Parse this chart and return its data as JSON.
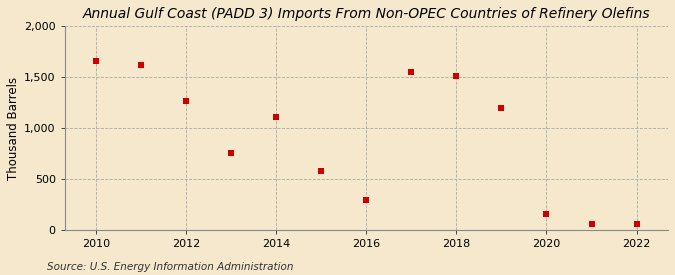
{
  "title": "Annual Gulf Coast (PADD 3) Imports From Non-OPEC Countries of Refinery Olefins",
  "ylabel": "Thousand Barrels",
  "source": "Source: U.S. Energy Information Administration",
  "background_color": "#f5e8cc",
  "plot_bg_color": "#f5e8cc",
  "years": [
    2010,
    2011,
    2012,
    2013,
    2014,
    2015,
    2016,
    2017,
    2018,
    2019,
    2020,
    2021,
    2022
  ],
  "values": [
    1660,
    1620,
    1270,
    750,
    1105,
    575,
    290,
    1555,
    1510,
    1200,
    155,
    60,
    60
  ],
  "marker_color": "#cc0000",
  "marker_size": 4,
  "ylim": [
    0,
    2000
  ],
  "yticks": [
    0,
    500,
    1000,
    1500,
    2000
  ],
  "xlim": [
    2009.3,
    2022.7
  ],
  "xticks": [
    2010,
    2012,
    2014,
    2016,
    2018,
    2020,
    2022
  ],
  "title_fontsize": 10,
  "ylabel_fontsize": 8.5,
  "tick_fontsize": 8,
  "source_fontsize": 7.5
}
